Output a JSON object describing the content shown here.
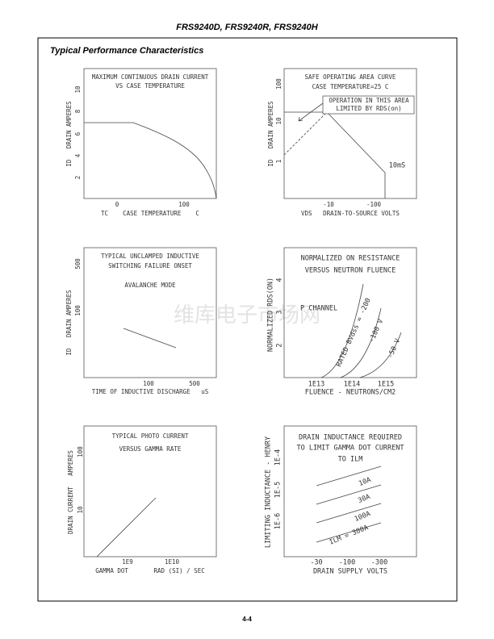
{
  "header": "FRS9240D, FRS9240R, FRS9240H",
  "section_title": "Typical Performance Characteristics",
  "watermark": "维库电子市场网",
  "footer": "4-4",
  "graphs": [
    {
      "title": [
        "MAXIMUM CONTINUOUS DRAIN CURRENT",
        "VS CASE TEMPERATURE"
      ],
      "y_label": "ID   DRAIN AMPERES",
      "y_ticks": [
        "10",
        "8",
        "6",
        "4",
        "2"
      ],
      "x_ticks": [
        "0",
        "100"
      ],
      "x_label": "TC    CASE TEMPERATURE    C",
      "annotations": []
    },
    {
      "title": [
        "SAFE OPERATING AREA CURVE",
        "CASE TEMPERATURE=25 C"
      ],
      "y_label": "ID   DRAIN AMPERES",
      "y_ticks": [
        "100",
        "10",
        "1"
      ],
      "x_ticks": [
        "-10",
        "-100"
      ],
      "x_label": "VDS   DRAIN-TO-SOURCE VOLTS",
      "annotations": [
        "OPERATION IN THIS AREA",
        "LIMITED BY RDS(on)",
        "10mS"
      ]
    },
    {
      "title": [
        "TYPICAL UNCLAMPED INDUCTIVE",
        "SWITCHING FAILURE ONSET",
        "AVALANCHE MODE"
      ],
      "y_label": "ID   DRAIN AMPERES",
      "y_ticks": [
        "500",
        "100"
      ],
      "x_ticks": [
        "100",
        "500"
      ],
      "x_label": "TIME OF INDUCTIVE DISCHARGE   uS",
      "annotations": []
    },
    {
      "title": [
        "NORMALIZED ON RESISTANCE",
        "VERSUS NEUTRON FLUENCE"
      ],
      "y_label": "NORMALIZED RDS(ON)",
      "y_ticks": [
        "4",
        "3",
        "2"
      ],
      "x_ticks": [
        "1E13",
        "1E14",
        "1E15"
      ],
      "x_label": "FLUENCE - NEUTRONS/CM2",
      "annotations": [
        "P CHANNEL",
        "RATED BVdss = -200",
        "-100 V",
        "-50 V"
      ]
    },
    {
      "title": [
        "TYPICAL PHOTO CURRENT",
        "VERSUS GAMMA RATE"
      ],
      "y_label": "DRAIN CURRENT   AMPERES",
      "y_ticks": [
        "100",
        "10"
      ],
      "x_ticks": [
        "1E9",
        "1E10"
      ],
      "x_label": "GAMMA DOT       RAD (SI) / SEC",
      "annotations": []
    },
    {
      "title": [
        "DRAIN INDUCTANCE REQUIRED",
        "TO LIMIT GAMMA DOT CURRENT",
        "TO ILM"
      ],
      "y_label": "LIMITING INDUCTANCE - HENRY",
      "y_ticks": [
        "1E-4",
        "1E-5",
        "1E-6"
      ],
      "x_ticks": [
        "-30",
        "-100",
        "-300"
      ],
      "x_label": "DRAIN SUPPLY VOLTS",
      "annotations": [
        "10A",
        "30A",
        "100A",
        "ILM = 300A"
      ]
    }
  ]
}
